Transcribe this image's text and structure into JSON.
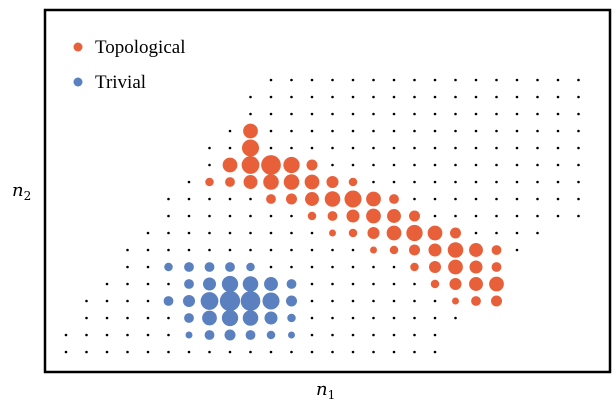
{
  "chart_data": {
    "type": "scatter",
    "title": "",
    "xlabel": "n",
    "xlabel_sub": "1",
    "ylabel": "n",
    "ylabel_sub": "2",
    "grid": false,
    "legend_position": "top-left",
    "colors": {
      "topological": "#e8603a",
      "trivial": "#5b80c0",
      "background": "#000000"
    },
    "series": [
      {
        "name": "Topological",
        "color": "#e8603a",
        "points": [
          [
            9,
            13,
            0.45
          ],
          [
            9,
            12,
            0.6
          ],
          [
            8,
            11,
            0.45
          ],
          [
            9,
            11,
            0.65
          ],
          [
            10,
            11,
            0.8
          ],
          [
            11,
            11,
            0.55
          ],
          [
            12,
            11,
            0.25
          ],
          [
            7,
            10,
            0.15
          ],
          [
            8,
            10,
            0.2
          ],
          [
            9,
            10,
            0.4
          ],
          [
            10,
            10,
            0.5
          ],
          [
            11,
            10,
            0.5
          ],
          [
            12,
            10,
            0.45
          ],
          [
            13,
            10,
            0.3
          ],
          [
            14,
            10,
            0.15
          ],
          [
            10,
            9,
            0.2
          ],
          [
            11,
            9,
            0.25
          ],
          [
            12,
            9,
            0.4
          ],
          [
            13,
            9,
            0.5
          ],
          [
            14,
            9,
            0.6
          ],
          [
            15,
            9,
            0.45
          ],
          [
            16,
            9,
            0.2
          ],
          [
            12,
            8,
            0.15
          ],
          [
            13,
            8,
            0.2
          ],
          [
            14,
            8,
            0.35
          ],
          [
            15,
            8,
            0.45
          ],
          [
            16,
            8,
            0.4
          ],
          [
            17,
            8,
            0.25
          ],
          [
            13,
            7,
            0.1
          ],
          [
            14,
            7,
            0.15
          ],
          [
            15,
            7,
            0.3
          ],
          [
            16,
            7,
            0.45
          ],
          [
            17,
            7,
            0.55
          ],
          [
            18,
            7,
            0.45
          ],
          [
            19,
            7,
            0.25
          ],
          [
            15,
            6,
            0.1
          ],
          [
            16,
            6,
            0.15
          ],
          [
            17,
            6,
            0.25
          ],
          [
            18,
            6,
            0.35
          ],
          [
            19,
            6,
            0.5
          ],
          [
            20,
            6,
            0.4
          ],
          [
            21,
            6,
            0.2
          ],
          [
            17,
            5,
            0.15
          ],
          [
            18,
            5,
            0.3
          ],
          [
            19,
            5,
            0.45
          ],
          [
            20,
            5,
            0.35
          ],
          [
            21,
            5,
            0.2
          ],
          [
            18,
            4,
            0.15
          ],
          [
            19,
            4,
            0.3
          ],
          [
            20,
            4,
            0.4
          ],
          [
            21,
            4,
            0.45
          ],
          [
            19,
            3,
            0.1
          ],
          [
            20,
            3,
            0.2
          ],
          [
            21,
            3,
            0.25
          ]
        ]
      },
      {
        "name": "Trivial",
        "color": "#5b80c0",
        "points": [
          [
            5,
            5,
            0.15
          ],
          [
            6,
            5,
            0.2
          ],
          [
            7,
            5,
            0.2
          ],
          [
            8,
            5,
            0.2
          ],
          [
            9,
            5,
            0.15
          ],
          [
            6,
            4,
            0.2
          ],
          [
            7,
            4,
            0.35
          ],
          [
            8,
            4,
            0.55
          ],
          [
            9,
            4,
            0.5
          ],
          [
            10,
            4,
            0.4
          ],
          [
            11,
            4,
            0.2
          ],
          [
            5,
            3,
            0.2
          ],
          [
            6,
            3,
            0.3
          ],
          [
            7,
            3,
            0.65
          ],
          [
            8,
            3,
            0.85
          ],
          [
            9,
            3,
            0.8
          ],
          [
            10,
            3,
            0.6
          ],
          [
            11,
            3,
            0.25
          ],
          [
            6,
            2,
            0.2
          ],
          [
            7,
            2,
            0.45
          ],
          [
            8,
            2,
            0.55
          ],
          [
            9,
            2,
            0.5
          ],
          [
            10,
            2,
            0.35
          ],
          [
            11,
            2,
            0.15
          ],
          [
            6,
            1,
            0.1
          ],
          [
            7,
            1,
            0.2
          ],
          [
            8,
            1,
            0.25
          ],
          [
            9,
            1,
            0.2
          ],
          [
            10,
            1,
            0.15
          ],
          [
            11,
            1,
            0.1
          ]
        ]
      },
      {
        "name": "",
        "color": "#000000",
        "points": []
      }
    ],
    "grid_rows": [
      {
        "y": 16,
        "x_start": 10,
        "x_end": 25
      },
      {
        "y": 15,
        "x_start": 9,
        "x_end": 25
      },
      {
        "y": 14,
        "x_start": 9,
        "x_end": 25
      },
      {
        "y": 13,
        "x_start": 8,
        "x_end": 25
      },
      {
        "y": 12,
        "x_start": 7,
        "x_end": 25
      },
      {
        "y": 11,
        "x_start": 7,
        "x_end": 25
      },
      {
        "y": 10,
        "x_start": 6,
        "x_end": 25
      },
      {
        "y": 9,
        "x_start": 5,
        "x_end": 25
      },
      {
        "y": 8,
        "x_start": 5,
        "x_end": 25
      },
      {
        "y": 7,
        "x_start": 4,
        "x_end": 23
      },
      {
        "y": 6,
        "x_start": 3,
        "x_end": 22
      },
      {
        "y": 5,
        "x_start": 3,
        "x_end": 21
      },
      {
        "y": 4,
        "x_start": 2,
        "x_end": 20
      },
      {
        "y": 3,
        "x_start": 1,
        "x_end": 20
      },
      {
        "y": 2,
        "x_start": 1,
        "x_end": 19
      },
      {
        "y": 1,
        "x_start": 0,
        "x_end": 18
      },
      {
        "y": 0,
        "x_start": 0,
        "x_end": 18
      }
    ],
    "xlim": [
      -1,
      26
    ],
    "ylim": [
      -1,
      17
    ]
  }
}
